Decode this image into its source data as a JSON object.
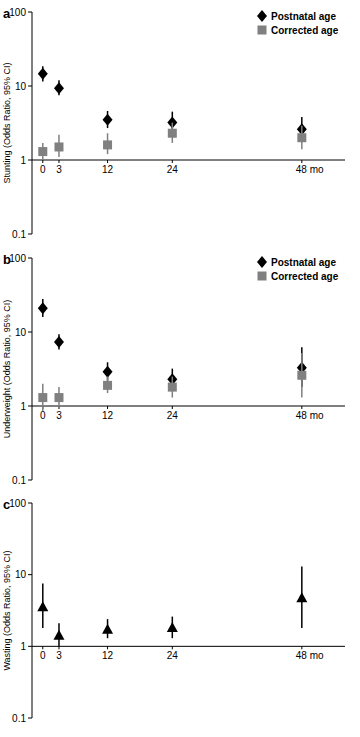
{
  "chart_data": [
    {
      "type": "scatter",
      "title": "a",
      "y_label": "Stunting (Odds Ratio, 95% CI)",
      "x": [
        0,
        3,
        12,
        24,
        48
      ],
      "xlim": [
        -2,
        56
      ],
      "xticks": [
        0,
        3,
        12,
        24,
        {
          "value": 48,
          "label": "48 mo"
        }
      ],
      "ylim": [
        0.1,
        100
      ],
      "yticks": [
        0.1,
        1,
        10,
        100
      ],
      "log": "y",
      "legend": "top-right",
      "series": [
        {
          "name": "Postnatal age",
          "color": "#000000",
          "marker": "diamond",
          "values": [
            14.6,
            9.3,
            3.5,
            3.2,
            2.6
          ],
          "ci_lower": [
            11.5,
            7.5,
            2.7,
            2.4,
            1.9
          ],
          "ci_upper": [
            18.5,
            12,
            4.6,
            4.5,
            3.8
          ]
        },
        {
          "name": "Corrected age",
          "color": "#808080",
          "marker": "square",
          "values": [
            1.3,
            1.5,
            1.6,
            2.3,
            2.0
          ],
          "ci_lower": [
            1.0,
            1.1,
            1.2,
            1.7,
            1.4
          ],
          "ci_upper": [
            1.7,
            2.2,
            2.3,
            3.2,
            2.9
          ]
        }
      ]
    },
    {
      "type": "scatter",
      "title": "b",
      "y_label": "Underweight (Odds Ratio, 95% CI)",
      "x": [
        0,
        3,
        12,
        24,
        48
      ],
      "xlim": [
        -2,
        56
      ],
      "xticks": [
        0,
        3,
        12,
        24,
        {
          "value": 48,
          "label": "48 mo"
        }
      ],
      "ylim": [
        0.1,
        100
      ],
      "yticks": [
        0.1,
        1,
        10,
        100
      ],
      "log": "y",
      "legend": "top-right",
      "series": [
        {
          "name": "Postnatal age",
          "color": "#000000",
          "marker": "diamond",
          "values": [
            21,
            7.3,
            2.9,
            2.3,
            3.3
          ],
          "ci_lower": [
            16,
            5.8,
            2.2,
            1.7,
            1.8
          ],
          "ci_upper": [
            28,
            9.3,
            3.9,
            3.2,
            6.2
          ]
        },
        {
          "name": "Corrected age",
          "color": "#808080",
          "marker": "square",
          "values": [
            1.3,
            1.3,
            1.9,
            1.8,
            2.6
          ],
          "ci_lower": [
            0.85,
            0.95,
            1.5,
            1.3,
            1.3
          ],
          "ci_upper": [
            2.0,
            1.8,
            2.5,
            2.5,
            5.2
          ]
        }
      ]
    },
    {
      "type": "scatter",
      "title": "c",
      "y_label": "Wasting (Odds Ratio, 95% CI)",
      "x": [
        0,
        3,
        12,
        24,
        48
      ],
      "xlim": [
        -2,
        56
      ],
      "xticks": [
        0,
        3,
        12,
        24,
        {
          "value": 48,
          "label": "48 mo"
        }
      ],
      "ylim": [
        0.1,
        100
      ],
      "yticks": [
        0.1,
        1,
        10,
        100
      ],
      "log": "y",
      "color": "#000000",
      "marker": "triangle",
      "values": [
        3.5,
        1.4,
        1.7,
        1.8,
        4.7
      ],
      "ci_lower": [
        1.8,
        1.0,
        1.3,
        1.3,
        1.8
      ],
      "ci_upper": [
        7.5,
        2.1,
        2.4,
        2.6,
        13
      ]
    }
  ]
}
